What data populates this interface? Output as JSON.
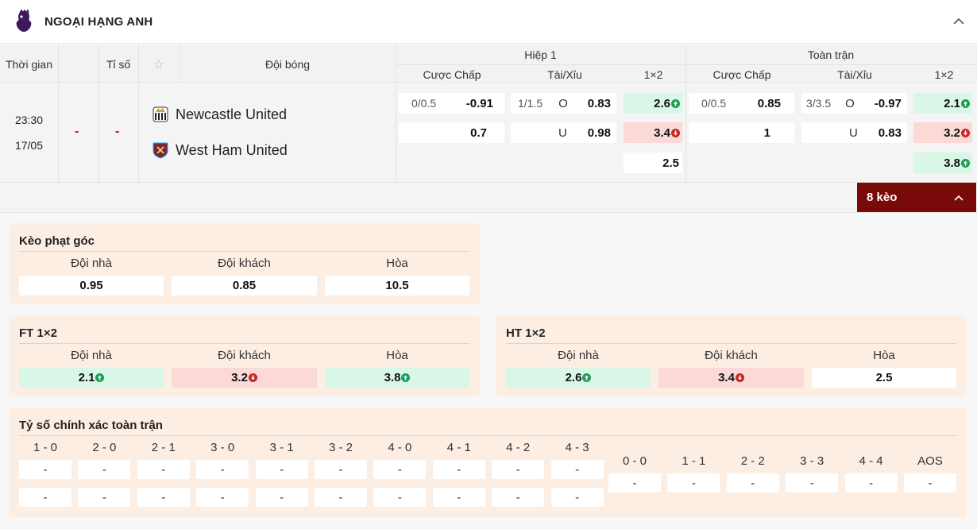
{
  "league": {
    "title": "NGOẠI HẠNG ANH"
  },
  "columns": {
    "time": "Thời gian",
    "score": "Tỉ số",
    "teams": "Đội bóng",
    "half1": "Hiệp 1",
    "full": "Toàn trận",
    "handicap": "Cược Chấp",
    "over_under": "Tài/Xỉu",
    "x12": "1×2"
  },
  "match": {
    "time": "23:30",
    "date": "17/05",
    "home_score": "-",
    "away_score": "-",
    "home": "Newcastle United",
    "away": "West Ham United",
    "h1": {
      "hdp_line": "0/0.5",
      "hdp_home": "-0.91",
      "hdp_away": "0.7",
      "ou_line": "1/1.5",
      "ou_o": "O",
      "ou_over": "0.83",
      "ou_u": "U",
      "ou_under": "0.98",
      "x12_1": "2.6",
      "x12_2": "3.4",
      "x12_x": "2.5"
    },
    "ft": {
      "hdp_line": "0/0.5",
      "hdp_home": "0.85",
      "hdp_away": "1",
      "ou_line": "3/3.5",
      "ou_o": "O",
      "ou_over": "-0.97",
      "ou_u": "U",
      "ou_under": "0.83",
      "x12_1": "2.1",
      "x12_2": "3.2",
      "x12_x": "3.8"
    }
  },
  "bets_button": "8 kèo",
  "corner": {
    "title": "Kèo phạt góc",
    "labels": [
      "Đội nhà",
      "Đội khách",
      "Hòa"
    ],
    "values": [
      "0.95",
      "0.85",
      "10.5"
    ]
  },
  "ft12": {
    "title": "FT 1×2",
    "labels": [
      "Đội nhà",
      "Đội khách",
      "Hòa"
    ],
    "values": [
      "2.1",
      "3.2",
      "3.8"
    ]
  },
  "ht12": {
    "title": "HT 1×2",
    "labels": [
      "Đội nhà",
      "Đội khách",
      "Hòa"
    ],
    "values": [
      "2.6",
      "3.4",
      "2.5"
    ]
  },
  "exact": {
    "title": "Tỷ số chính xác toàn trận",
    "home_scores": [
      "1 - 0",
      "2 - 0",
      "2 - 1",
      "3 - 0",
      "3 - 1",
      "3 - 2",
      "4 - 0",
      "4 - 1",
      "4 - 2",
      "4 - 3"
    ],
    "draw_scores": [
      "0 - 0",
      "1 - 1",
      "2 - 2",
      "3 - 3",
      "4 - 4",
      "AOS"
    ],
    "empty": "-"
  },
  "colors": {
    "up": "#1f9d55",
    "down": "#c62828",
    "accent": "#7a0a0a",
    "red_dash": "#d0021b"
  }
}
